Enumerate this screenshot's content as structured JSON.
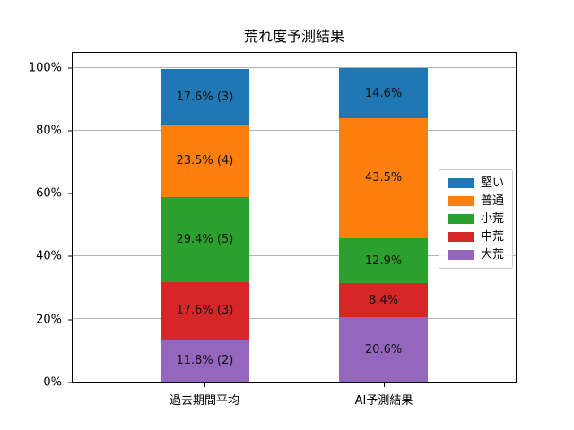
{
  "chart_data": {
    "type": "bar",
    "stacked": true,
    "title": "荒れ度予測結果",
    "categories": [
      "過去期間平均",
      "AI予測結果"
    ],
    "series": [
      {
        "name": "堅い",
        "color": "#1f77b4",
        "values": [
          17.6,
          14.6
        ],
        "labels": [
          "17.6% (3)",
          "14.6%"
        ]
      },
      {
        "name": "普通",
        "color": "#ff7f0e",
        "values": [
          23.5,
          43.5
        ],
        "labels": [
          "23.5% (4)",
          "43.5%"
        ]
      },
      {
        "name": "小荒",
        "color": "#2ca02c",
        "values": [
          29.4,
          12.9
        ],
        "labels": [
          "29.4% (5)",
          "12.9%"
        ]
      },
      {
        "name": "中荒",
        "color": "#d62728",
        "values": [
          17.6,
          8.4
        ],
        "labels": [
          "17.6% (3)",
          "8.4%"
        ]
      },
      {
        "name": "大荒",
        "color": "#9467bd",
        "values": [
          11.8,
          20.6
        ],
        "labels": [
          "11.8% (2)",
          "20.6%"
        ]
      }
    ],
    "stack_order_top_to_bottom": [
      "堅い",
      "普通",
      "小荒",
      "中荒",
      "大荒"
    ],
    "xlabel": "",
    "ylabel": "",
    "ylim": [
      0,
      105
    ],
    "yticks": [
      "0%",
      "20%",
      "40%",
      "60%",
      "80%",
      "100%"
    ],
    "ytick_values": [
      0,
      20,
      40,
      60,
      80,
      100
    ],
    "grid": true,
    "legend_position": "center right",
    "colors": {
      "grid": "#b2b2b2",
      "spine": "#000000",
      "bar_label_text": "#111111",
      "legend_border": "#cccccc"
    }
  }
}
